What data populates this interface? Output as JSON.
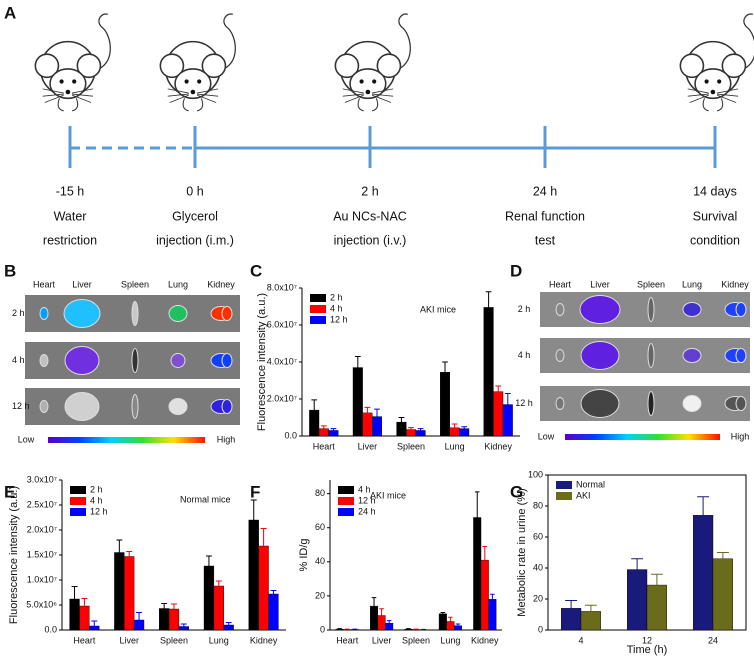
{
  "timeline": {
    "label": "A",
    "events": [
      {
        "time": "-15 h",
        "lines": [
          "Water",
          "restriction"
        ]
      },
      {
        "time": "0 h",
        "lines": [
          "Glycerol",
          "injection (i.m.)"
        ]
      },
      {
        "time": "2 h",
        "lines": [
          "Au NCs-NAC",
          "injection (i.v.)"
        ]
      },
      {
        "time": "24 h",
        "lines": [
          "Renal function",
          "test"
        ]
      },
      {
        "time": "14 days",
        "lines": [
          "Survival",
          "condition"
        ]
      }
    ]
  },
  "image_panels": [
    {
      "label": "B",
      "columns": [
        "Heart",
        "Liver",
        "Spleen",
        "Lung",
        "Kidney"
      ],
      "rows": [
        "2 h",
        "4 h",
        "12 h"
      ],
      "scale": [
        "Low",
        "High"
      ]
    },
    {
      "label": "D",
      "columns": [
        "Heart",
        "Liver",
        "Spleen",
        "Lung",
        "Kidney"
      ],
      "rows": [
        "2 h",
        "4 h",
        "12 h"
      ],
      "scale": [
        "Low",
        "High"
      ]
    }
  ],
  "chart_data": [
    {
      "type": "bar",
      "panel": "C",
      "ylabel": "Fluorescence intensity (a.u.)",
      "annotation": "AKI mice",
      "legend": "upper left",
      "categories": [
        "Heart",
        "Liver",
        "Spleen",
        "Lung",
        "Kidney"
      ],
      "series": [
        {
          "name": "2 h",
          "color": "#000000",
          "values": [
            14000000,
            37000000,
            7500000,
            34500000,
            69500000
          ],
          "errors": [
            5500000,
            6000000,
            2500000,
            5500000,
            8500000
          ]
        },
        {
          "name": "4 h",
          "color": "#ff0000",
          "values": [
            4000000,
            12500000,
            3500000,
            4500000,
            24000000
          ],
          "errors": [
            1500000,
            3000000,
            1000000,
            2000000,
            3000000
          ]
        },
        {
          "name": "12 h",
          "color": "#0000ff",
          "values": [
            3000000,
            10500000,
            3000000,
            4000000,
            17000000
          ],
          "errors": [
            1000000,
            4000000,
            1000000,
            1000000,
            6000000
          ]
        }
      ],
      "ylim": [
        0,
        80000000
      ],
      "yticks": [
        {
          "value": 0,
          "label": "0.0"
        },
        {
          "value": 20000000,
          "label": "2.0x10⁷"
        },
        {
          "value": 40000000,
          "label": "4.0x10⁷"
        },
        {
          "value": 60000000,
          "label": "6.0x10⁷"
        },
        {
          "value": 80000000,
          "label": "8.0x10⁷"
        }
      ]
    },
    {
      "type": "bar",
      "panel": "E",
      "ylabel": "Fluorescence intensity (a.u.)",
      "annotation": "Normal mice",
      "legend": "upper left",
      "categories": [
        "Heart",
        "Liver",
        "Spleen",
        "Lung",
        "Kidney"
      ],
      "series": [
        {
          "name": "2 h",
          "color": "#000000",
          "values": [
            6200000,
            15500000,
            4300000,
            12800000,
            22000000
          ],
          "errors": [
            2500000,
            2500000,
            1000000,
            2000000,
            4000000
          ]
        },
        {
          "name": "4 h",
          "color": "#ff0000",
          "values": [
            4800000,
            14700000,
            4200000,
            8800000,
            16800000
          ],
          "errors": [
            1500000,
            1000000,
            1000000,
            1000000,
            3500000
          ]
        },
        {
          "name": "12 h",
          "color": "#0000ff",
          "values": [
            800000,
            2000000,
            700000,
            1000000,
            7200000
          ],
          "errors": [
            1000000,
            1500000,
            500000,
            500000,
            700000
          ]
        }
      ],
      "ylim": [
        0,
        30000000
      ],
      "yticks": [
        {
          "value": 0,
          "label": "0.0"
        },
        {
          "value": 5000000,
          "label": "5.0x10⁶"
        },
        {
          "value": 10000000,
          "label": "1.0x10⁷"
        },
        {
          "value": 15000000,
          "label": "1.5x10⁷"
        },
        {
          "value": 20000000,
          "label": "2.0x10⁷"
        },
        {
          "value": 25000000,
          "label": "2.5x10⁷"
        },
        {
          "value": 30000000,
          "label": "3.0x10⁷"
        }
      ]
    },
    {
      "type": "bar",
      "panel": "F",
      "ylabel": "% ID/g",
      "annotation": "AKI mice",
      "legend": "upper left",
      "categories": [
        "Heart",
        "Liver",
        "Spleen",
        "Lung",
        "Kidney"
      ],
      "series": [
        {
          "name": "4 h",
          "color": "#000000",
          "values": [
            0.5,
            14,
            0.5,
            9.5,
            66
          ],
          "errors": [
            0.3,
            5,
            0.3,
            0.8,
            15
          ]
        },
        {
          "name": "12 h",
          "color": "#ff0000",
          "values": [
            0.3,
            8.5,
            0.3,
            5,
            41
          ],
          "errors": [
            0.2,
            4,
            0.2,
            2.5,
            8
          ]
        },
        {
          "name": "24 h",
          "color": "#0000ff",
          "values": [
            0.3,
            4,
            0.2,
            2.5,
            18
          ],
          "errors": [
            0.2,
            1.5,
            0.2,
            1,
            3
          ]
        }
      ],
      "ylim": [
        0,
        88
      ],
      "yticks": [
        0,
        20,
        40,
        60,
        80
      ]
    },
    {
      "type": "bar",
      "panel": "G",
      "xlabel": "Time (h)",
      "ylabel": "Metabolic rate in urine (%)",
      "legend": "upper left",
      "frame": true,
      "categories": [
        "4",
        "12",
        "24"
      ],
      "series": [
        {
          "name": "Normal",
          "color": "#1a1a7a",
          "values": [
            14,
            39,
            74
          ],
          "errors": [
            5,
            7,
            12
          ]
        },
        {
          "name": "AKI",
          "color": "#6b6b1c",
          "values": [
            12,
            29,
            46
          ],
          "errors": [
            4,
            7,
            4
          ]
        }
      ],
      "ylim": [
        0,
        100
      ],
      "yticks": [
        0,
        20,
        40,
        60,
        80,
        100
      ]
    }
  ]
}
